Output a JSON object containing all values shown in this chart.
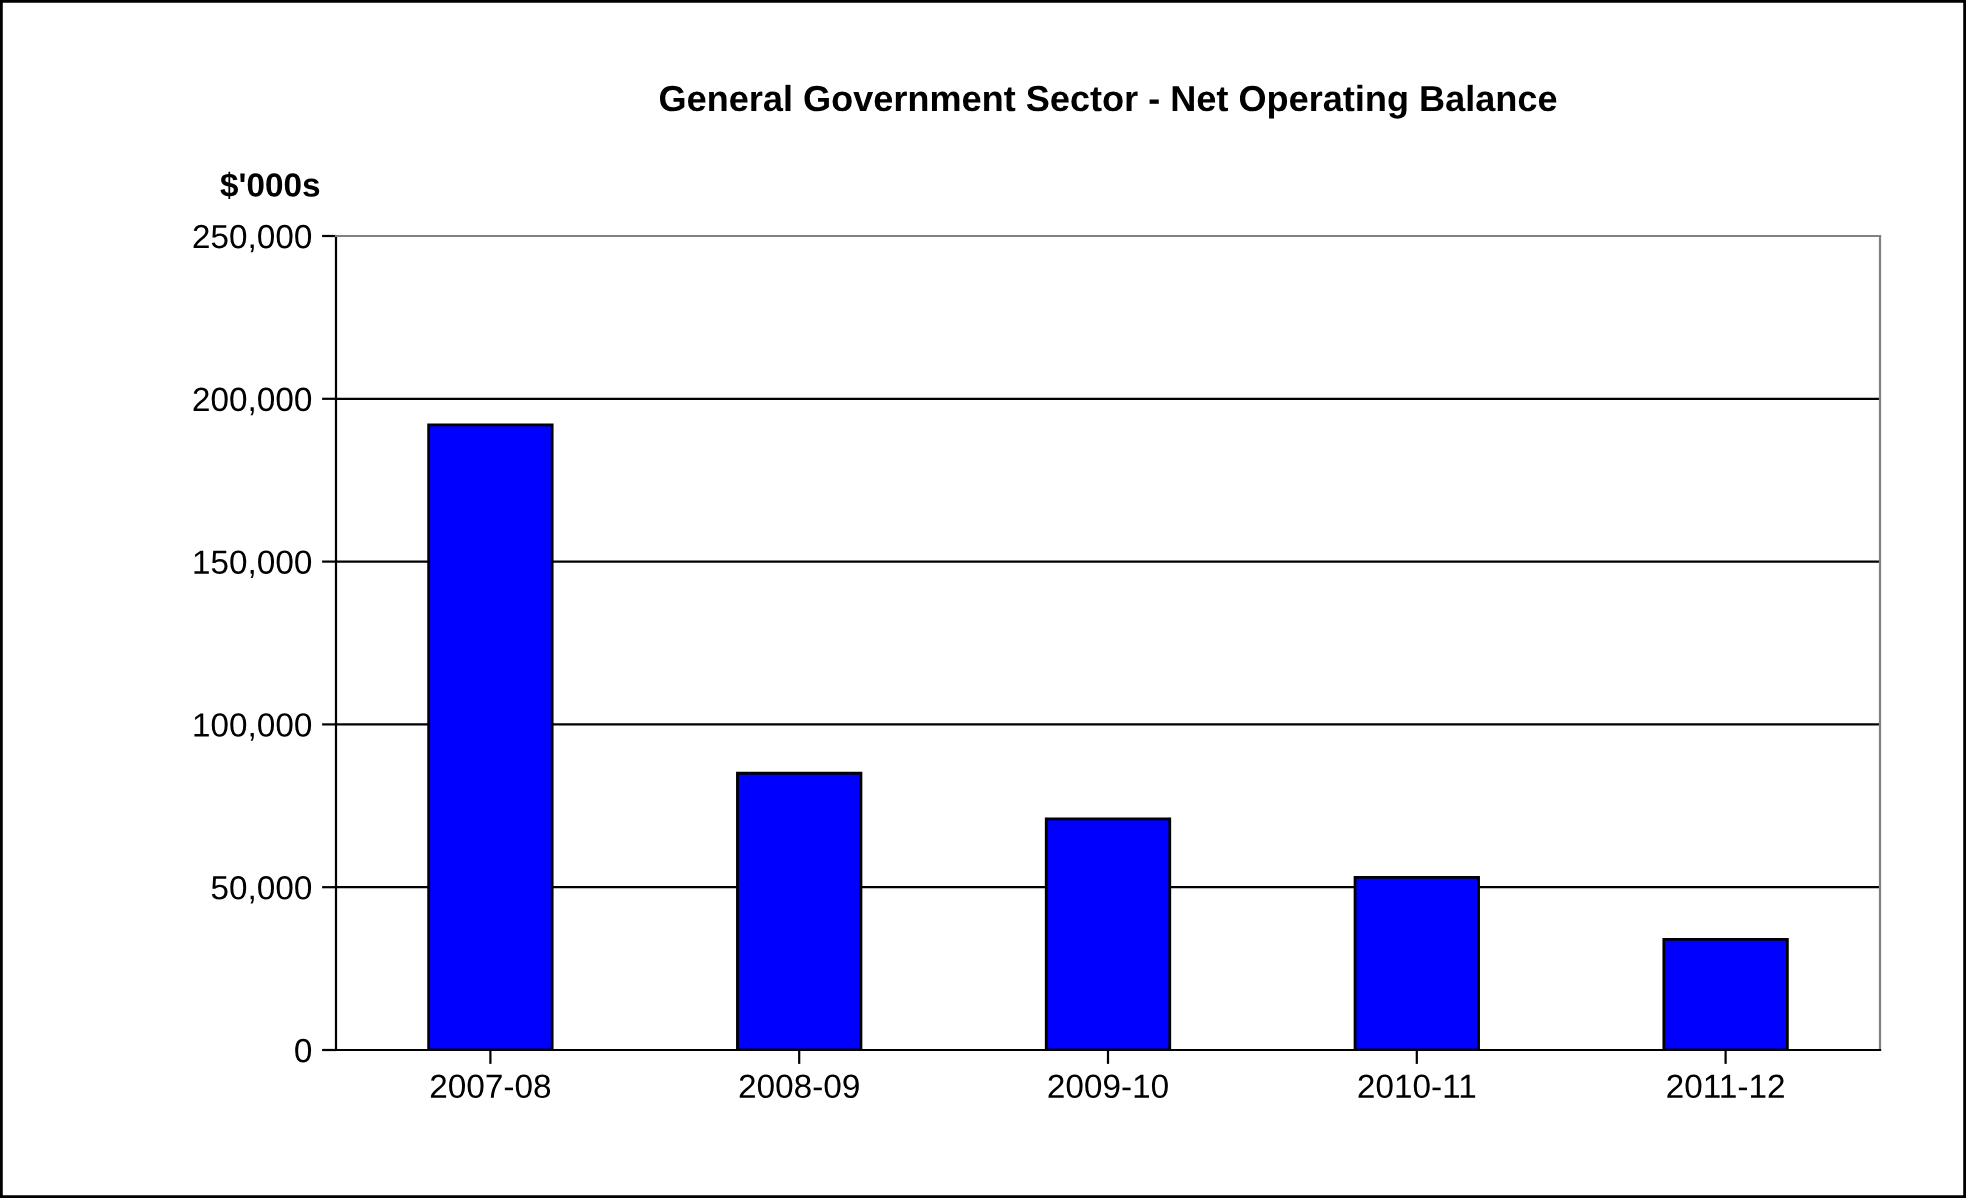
{
  "chart_data": {
    "type": "bar",
    "title": "General Government Sector - Net Operating Balance",
    "ylabel": "$'000s",
    "categories": [
      "2007-08",
      "2008-09",
      "2009-10",
      "2010-11",
      "2011-12"
    ],
    "values": [
      192000,
      85000,
      71000,
      53000,
      34000
    ],
    "color": "#0000ff",
    "ylim": [
      0,
      250000
    ],
    "yticks": [
      {
        "value": 0,
        "label": "0"
      },
      {
        "value": 50000,
        "label": "50,000"
      },
      {
        "value": 100000,
        "label": "100,000"
      },
      {
        "value": 150000,
        "label": "150,000"
      },
      {
        "value": 200000,
        "label": "200,000"
      },
      {
        "value": 250000,
        "label": "250,000"
      }
    ],
    "grid": "y",
    "legend": false
  }
}
